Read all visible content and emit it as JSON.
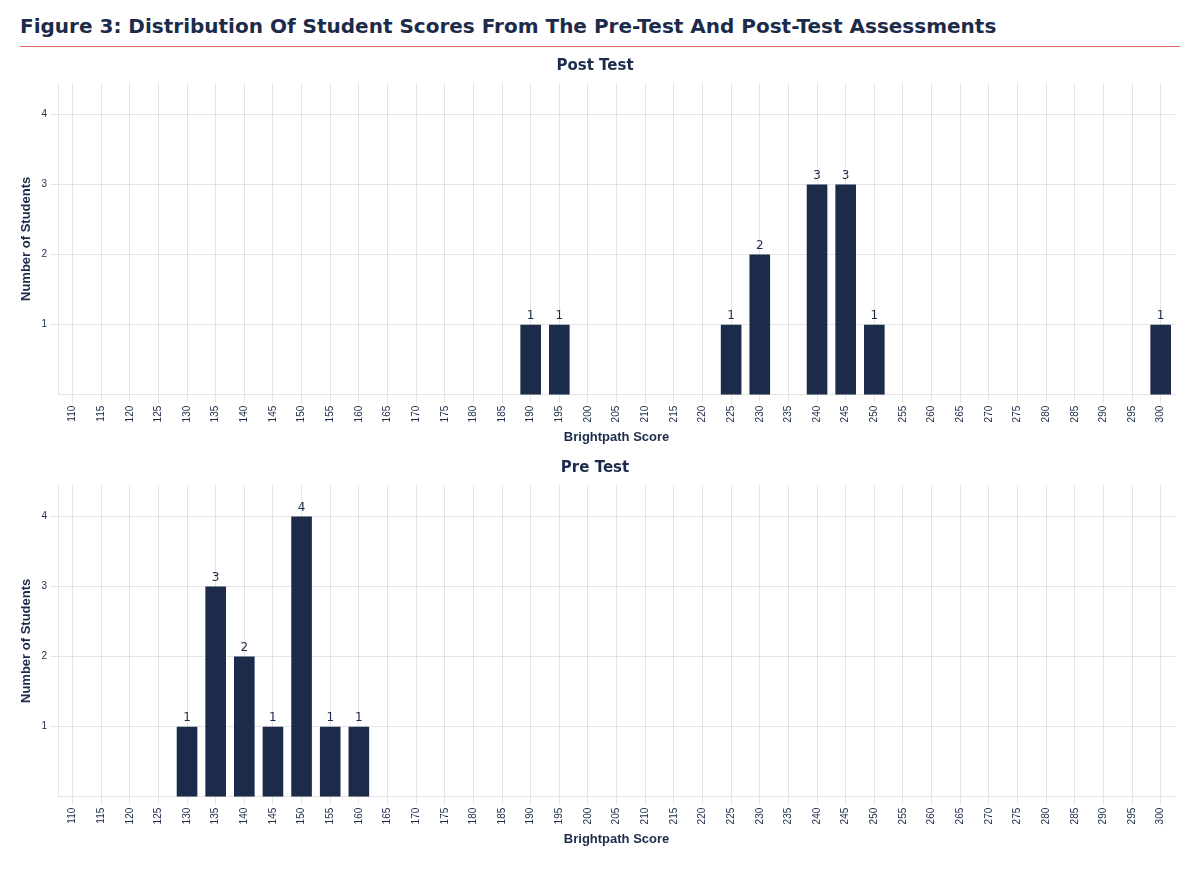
{
  "title": "Figure 3: Distribution Of Student Scores From The Pre-Test And Post-Test Assessments",
  "chart_data": [
    {
      "type": "bar",
      "title": "Post Test",
      "x_label": "Brightpath Score",
      "y_label": "Number of Students",
      "x": [
        190,
        195,
        225,
        230,
        240,
        245,
        250,
        300
      ],
      "values": [
        1,
        1,
        1,
        2,
        3,
        3,
        1,
        1
      ],
      "color": "#1C2B4A",
      "xlim": [
        107.5,
        302.5
      ],
      "xticks": [
        110,
        115,
        120,
        125,
        130,
        135,
        140,
        145,
        150,
        155,
        160,
        165,
        170,
        175,
        180,
        185,
        190,
        195,
        200,
        205,
        210,
        215,
        220,
        225,
        230,
        235,
        240,
        245,
        250,
        255,
        260,
        265,
        270,
        275,
        280,
        285,
        290,
        295,
        300
      ],
      "ylim": [
        0,
        4.45
      ],
      "yticks": [
        1,
        2,
        3,
        4
      ],
      "grid": true,
      "data_labels": true
    },
    {
      "type": "bar",
      "title": "Pre Test",
      "x_label": "Brightpath Score",
      "y_label": "Number of Students",
      "x": [
        130,
        135,
        140,
        145,
        150,
        155,
        160
      ],
      "values": [
        1,
        3,
        2,
        1,
        4,
        1,
        1
      ],
      "color": "#1C2B4A",
      "xlim": [
        107.5,
        302.5
      ],
      "xticks": [
        110,
        115,
        120,
        125,
        130,
        135,
        140,
        145,
        150,
        155,
        160,
        165,
        170,
        175,
        180,
        185,
        190,
        195,
        200,
        205,
        210,
        215,
        220,
        225,
        230,
        235,
        240,
        245,
        250,
        255,
        260,
        265,
        270,
        275,
        280,
        285,
        290,
        295,
        300
      ],
      "ylim": [
        0,
        4.45
      ],
      "yticks": [
        1,
        2,
        3,
        4
      ],
      "grid": true,
      "data_labels": true
    }
  ]
}
